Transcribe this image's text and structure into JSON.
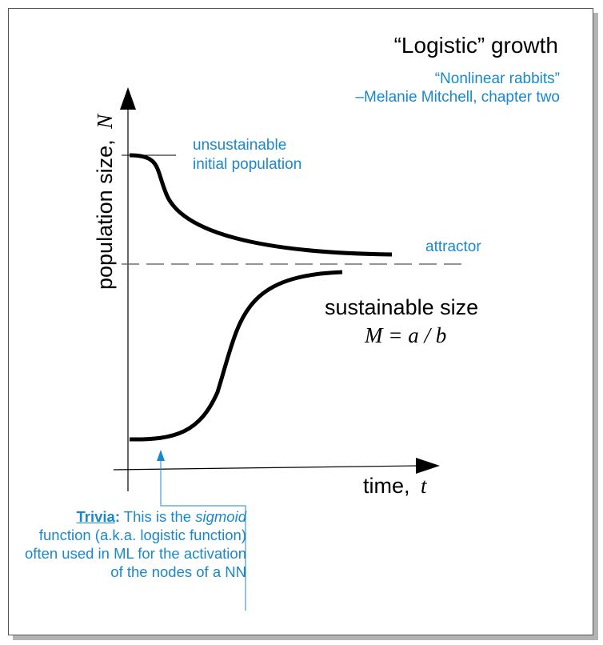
{
  "title": "“Logistic” growth",
  "citation": {
    "line1": "“Nonlinear rabbits”",
    "line2": "–Melanie Mitchell, chapter two"
  },
  "y_axis_label": "population size,",
  "y_axis_var": "N",
  "x_axis_label": "time,",
  "x_axis_var": "t",
  "annotations": {
    "unsustainable_line1": "unsustainable",
    "unsustainable_line2": "initial population",
    "attractor": "attractor",
    "sustainable_size": "sustainable size",
    "formula": "M = a / b"
  },
  "trivia": {
    "label": "Trivia",
    "colon": ":",
    "text_before": " This is the ",
    "emphasis": "sigmoid",
    "text_after": " function (a.k.a. logistic function) often used in ML for the activation of the nodes of a NN"
  },
  "colors": {
    "accent": "#1a88c9",
    "curve": "#000000",
    "dashed": "#555555",
    "shadow": "#b3b3b3"
  }
}
